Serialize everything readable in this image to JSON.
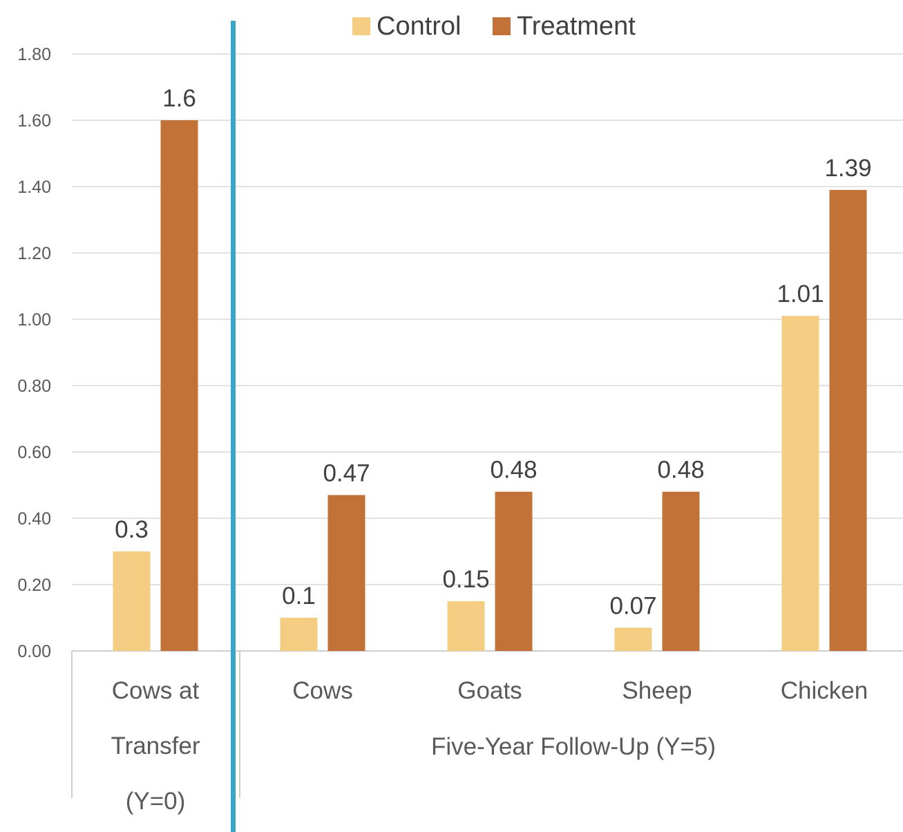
{
  "chart_data": {
    "type": "bar",
    "categories": [
      "Cows at Transfer (Y=0)",
      "Cows",
      "Goats",
      "Sheep",
      "Chicken"
    ],
    "category_lines": [
      [
        "Cows at",
        "Transfer",
        "(Y=0)"
      ],
      [
        "Cows"
      ],
      [
        "Goats"
      ],
      [
        "Sheep"
      ],
      [
        "Chicken"
      ]
    ],
    "group_labels": [
      {
        "label": "",
        "categories": [
          0
        ]
      },
      {
        "label": "Five-Year Follow-Up (Y=5)",
        "categories": [
          1,
          2,
          3,
          4
        ]
      }
    ],
    "series": [
      {
        "name": "Control",
        "color": "#f4cc82",
        "values": [
          0.3,
          0.1,
          0.15,
          0.07,
          1.01
        ],
        "labels": [
          "0.3",
          "0.1",
          "0.15",
          "0.07",
          "1.01"
        ]
      },
      {
        "name": "Treatment",
        "color": "#c27236",
        "values": [
          1.6,
          0.47,
          0.48,
          0.48,
          1.39
        ],
        "labels": [
          "1.6",
          "0.47",
          "0.48",
          "0.48",
          "1.39"
        ]
      }
    ],
    "yticks": [
      "0.00",
      "0.20",
      "0.40",
      "0.60",
      "0.80",
      "1.00",
      "1.20",
      "1.40",
      "1.60",
      "1.80"
    ],
    "ylim": [
      0,
      1.8
    ],
    "grid": true,
    "legend_position": "top",
    "divider_color": "#3aa6c7",
    "title": "",
    "xlabel": "",
    "ylabel": ""
  }
}
